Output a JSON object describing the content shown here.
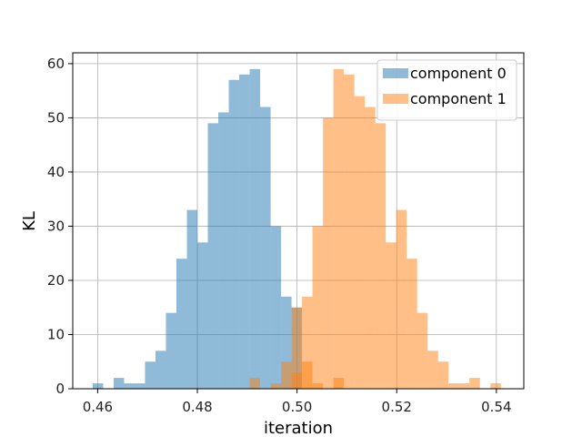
{
  "chart_data": {
    "type": "bar",
    "subtype": "overlaid-histogram",
    "xlabel": "iteration",
    "ylabel": "KL",
    "xlim": [
      0.455,
      0.5455
    ],
    "ylim": [
      0,
      62
    ],
    "xticks": [
      0.46,
      0.48,
      0.5,
      0.52,
      0.54
    ],
    "xtick_labels": [
      "0.46",
      "0.48",
      "0.50",
      "0.52",
      "0.54"
    ],
    "yticks": [
      0,
      10,
      20,
      30,
      40,
      50,
      60
    ],
    "ytick_labels": [
      "0",
      "10",
      "20",
      "30",
      "40",
      "50",
      "60"
    ],
    "grid": true,
    "legend_position": "top-right",
    "series": [
      {
        "name": "component 0",
        "color": "#1f77b4",
        "alpha": 0.5,
        "bins": [
          [
            0.459,
            0.4611,
            1
          ],
          [
            0.4611,
            0.4632,
            0
          ],
          [
            0.4632,
            0.4653,
            2
          ],
          [
            0.4653,
            0.4674,
            1
          ],
          [
            0.4674,
            0.4695,
            1
          ],
          [
            0.4695,
            0.4716,
            5
          ],
          [
            0.4716,
            0.4737,
            7
          ],
          [
            0.4737,
            0.4758,
            14
          ],
          [
            0.4758,
            0.4779,
            24
          ],
          [
            0.4779,
            0.48,
            33
          ],
          [
            0.48,
            0.4821,
            27
          ],
          [
            0.4821,
            0.4842,
            49
          ],
          [
            0.4842,
            0.4863,
            51
          ],
          [
            0.4863,
            0.4884,
            57
          ],
          [
            0.4884,
            0.4905,
            58
          ],
          [
            0.4905,
            0.4926,
            59
          ],
          [
            0.4926,
            0.4947,
            52
          ],
          [
            0.4947,
            0.4968,
            30
          ],
          [
            0.4968,
            0.4989,
            17
          ],
          [
            0.4989,
            0.501,
            15
          ]
        ]
      },
      {
        "name": "component 1",
        "color": "#ff7f0e",
        "alpha": 0.5,
        "bins": [
          [
            0.4989,
            0.501,
            15
          ],
          [
            0.501,
            0.5031,
            17
          ],
          [
            0.5031,
            0.5052,
            30
          ],
          [
            0.5052,
            0.5073,
            50
          ],
          [
            0.5073,
            0.5094,
            59
          ],
          [
            0.5094,
            0.5115,
            58
          ],
          [
            0.5115,
            0.5136,
            54
          ],
          [
            0.5136,
            0.5157,
            52
          ],
          [
            0.5157,
            0.5178,
            49
          ],
          [
            0.5178,
            0.5199,
            27
          ],
          [
            0.5199,
            0.522,
            33
          ],
          [
            0.522,
            0.5241,
            24
          ],
          [
            0.5241,
            0.5262,
            14
          ],
          [
            0.5262,
            0.5283,
            7
          ],
          [
            0.5283,
            0.5304,
            5
          ],
          [
            0.5304,
            0.5325,
            1
          ],
          [
            0.5325,
            0.5346,
            1
          ],
          [
            0.5346,
            0.5367,
            2
          ],
          [
            0.5367,
            0.5388,
            0
          ],
          [
            0.5388,
            0.5409,
            1
          ]
        ]
      },
      {
        "name": "",
        "color": "#ff7f0e",
        "alpha": 0.5,
        "bins": [
          [
            0.4905,
            0.4926,
            2
          ],
          [
            0.4926,
            0.4947,
            0
          ],
          [
            0.4947,
            0.4968,
            1
          ],
          [
            0.4968,
            0.4989,
            5
          ],
          [
            0.4989,
            0.501,
            3
          ],
          [
            0.501,
            0.5031,
            5
          ],
          [
            0.5031,
            0.5052,
            1
          ],
          [
            0.5052,
            0.5073,
            0
          ],
          [
            0.5073,
            0.5094,
            2
          ]
        ]
      }
    ]
  }
}
